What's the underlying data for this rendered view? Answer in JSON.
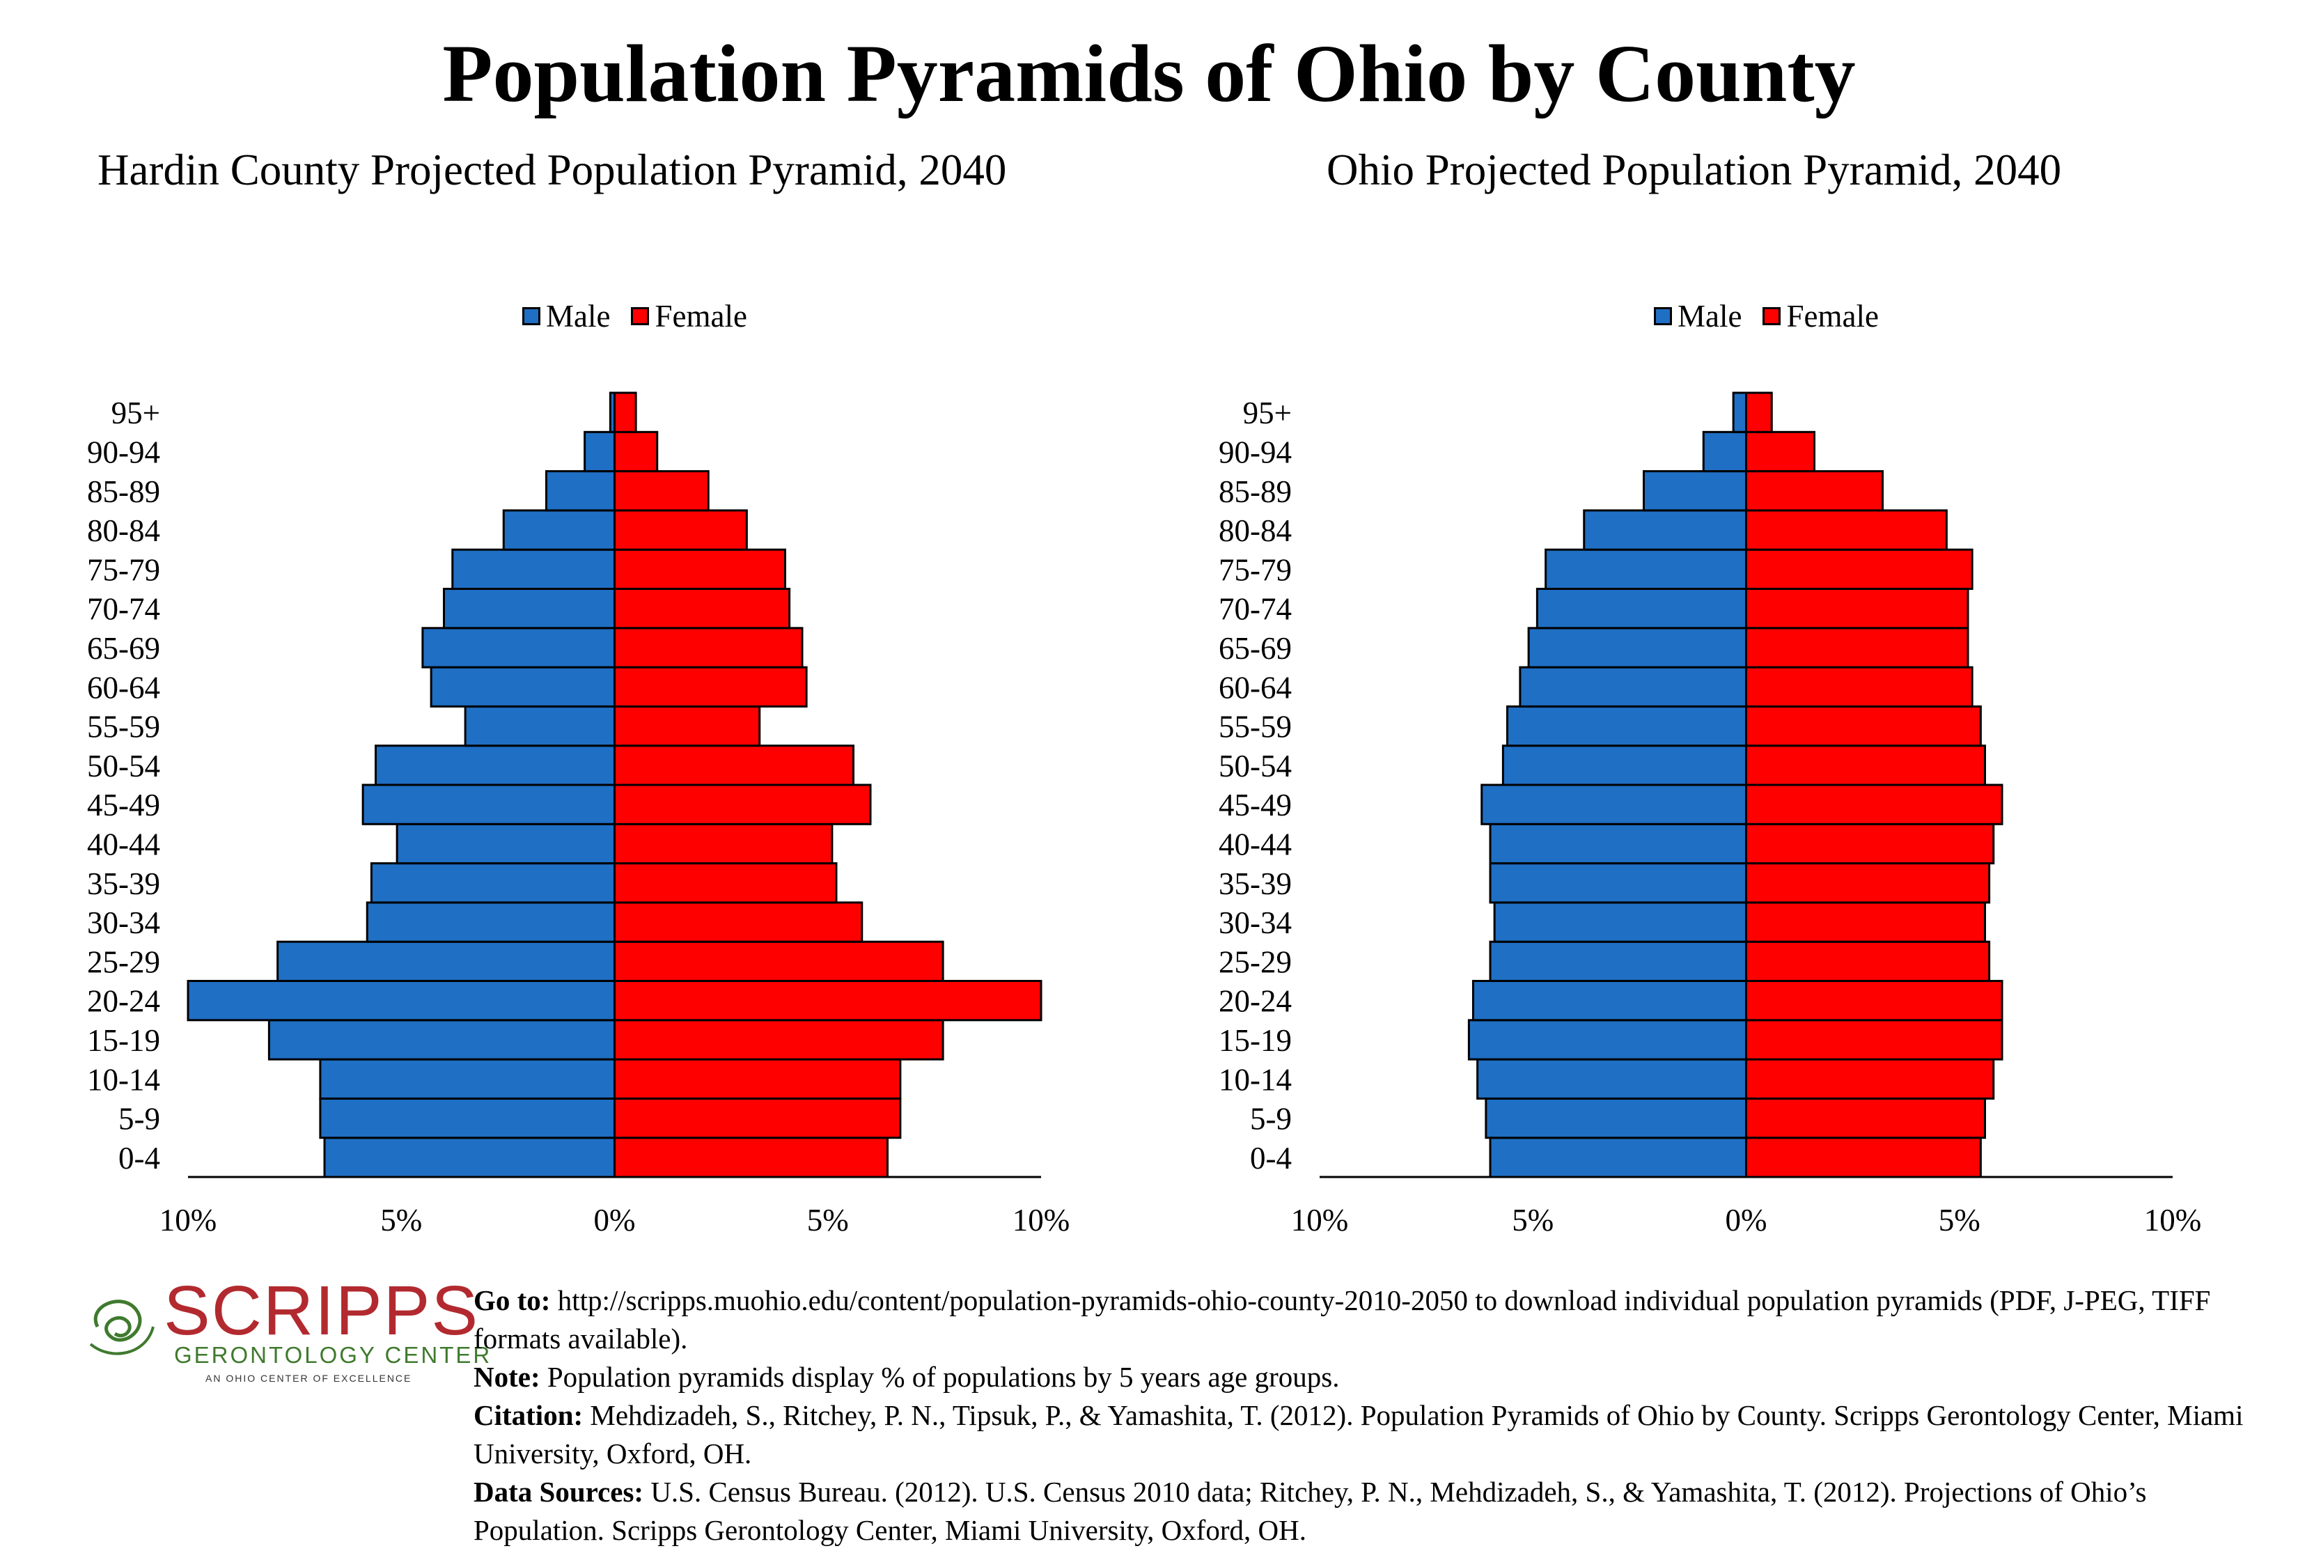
{
  "title": "Population Pyramids of Ohio by County",
  "colors": {
    "male": "#1f6fc4",
    "female": "#ff0000",
    "logo_red": "#b22a2f",
    "logo_green": "#3f7a2e"
  },
  "legend": {
    "male": "Male",
    "female": "Female"
  },
  "chart_data": [
    {
      "type": "bar",
      "orientation": "horizontal-pyramid",
      "title": "Hardin County Projected Population Pyramid, 2040",
      "categories": [
        "0-4",
        "5-9",
        "10-14",
        "15-19",
        "20-24",
        "25-29",
        "30-34",
        "35-39",
        "40-44",
        "45-49",
        "50-54",
        "55-59",
        "60-64",
        "65-69",
        "70-74",
        "75-79",
        "80-84",
        "85-89",
        "90-94",
        "95+"
      ],
      "series": [
        {
          "name": "Male",
          "values": [
            6.8,
            6.9,
            6.9,
            8.1,
            10.0,
            7.9,
            5.8,
            5.7,
            5.1,
            5.9,
            5.6,
            3.5,
            4.3,
            4.5,
            4.0,
            3.8,
            2.6,
            1.6,
            0.7,
            0.1
          ]
        },
        {
          "name": "Female",
          "values": [
            6.4,
            6.7,
            6.7,
            7.7,
            10.0,
            7.7,
            5.8,
            5.2,
            5.1,
            6.0,
            5.6,
            3.4,
            4.5,
            4.4,
            4.1,
            4.0,
            3.1,
            2.2,
            1.0,
            0.5
          ]
        }
      ],
      "xlim": [
        -10,
        10
      ],
      "tick_values": [
        -10,
        -5,
        0,
        5,
        10
      ],
      "tick_labels": [
        "10%",
        "5%",
        "0%",
        "5%",
        "10%"
      ],
      "legend": "top-center",
      "grid": false
    },
    {
      "type": "bar",
      "orientation": "horizontal-pyramid",
      "title": "Ohio Projected Population Pyramid, 2040",
      "categories": [
        "0-4",
        "5-9",
        "10-14",
        "15-19",
        "20-24",
        "25-29",
        "30-34",
        "35-39",
        "40-44",
        "45-49",
        "50-54",
        "55-59",
        "60-64",
        "65-69",
        "70-74",
        "75-79",
        "80-84",
        "85-89",
        "90-94",
        "95+"
      ],
      "series": [
        {
          "name": "Male",
          "values": [
            6.0,
            6.1,
            6.3,
            6.5,
            6.4,
            6.0,
            5.9,
            6.0,
            6.0,
            6.2,
            5.7,
            5.6,
            5.3,
            5.1,
            4.9,
            4.7,
            3.8,
            2.4,
            1.0,
            0.3
          ]
        },
        {
          "name": "Female",
          "values": [
            5.5,
            5.6,
            5.8,
            6.0,
            6.0,
            5.7,
            5.6,
            5.7,
            5.8,
            6.0,
            5.6,
            5.5,
            5.3,
            5.2,
            5.2,
            5.3,
            4.7,
            3.2,
            1.6,
            0.6
          ]
        }
      ],
      "xlim": [
        -10,
        10
      ],
      "tick_values": [
        -10,
        -5,
        0,
        5,
        10
      ],
      "tick_labels": [
        "10%",
        "5%",
        "0%",
        "5%",
        "10%"
      ],
      "legend": "top-center",
      "grid": false
    }
  ],
  "logo": {
    "name": "SCRIPPS",
    "subtitle": "GERONTOLOGY CENTER",
    "tagline": "AN OHIO CENTER OF EXCELLENCE"
  },
  "notes": {
    "goto_label": "Go to:",
    "goto_text": "http://scripps.muohio.edu/content/population-pyramids-ohio-county-2010-2050 to download individual population pyramids (PDF, J-PEG, TIFF formats available).",
    "note_label": "Note:",
    "note_text": "Population pyramids display % of populations by 5 years age groups.",
    "citation_label": "Citation:",
    "citation_text": "Mehdizadeh, S., Ritchey, P. N., Tipsuk, P., & Yamashita, T. (2012). Population Pyramids of Ohio by County. Scripps Gerontology Center, Miami University, Oxford, OH.",
    "sources_label": "Data Sources:",
    "sources_text": "U.S. Census Bureau. (2012). U.S. Census 2010 data; Ritchey, P. N., Mehdizadeh, S., & Yamashita, T. (2012). Projections of Ohio’s Population. Scripps Gerontology Center, Miami University, Oxford, OH."
  }
}
